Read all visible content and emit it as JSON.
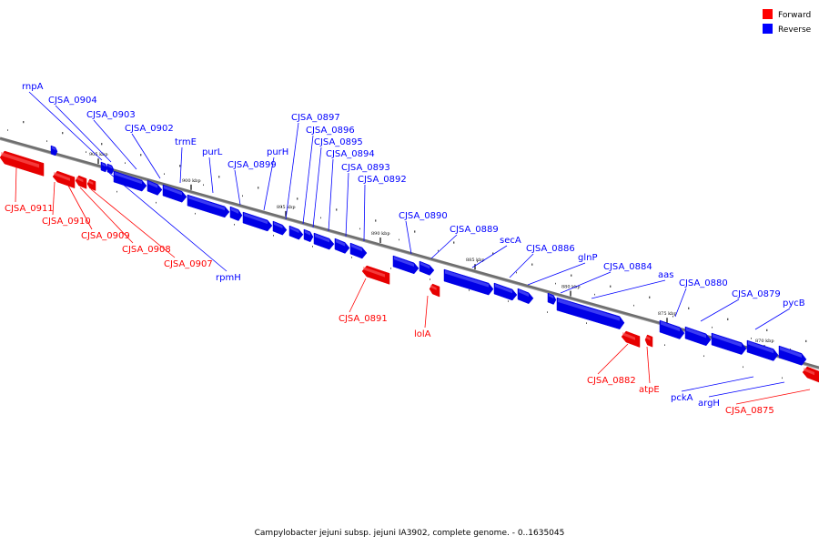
{
  "caption": "Campylobacter jejuni subsp. jejuni IA3902, complete genome. - 0..1635045",
  "legend": [
    {
      "label": "Forward",
      "color": "#ff0000"
    },
    {
      "label": "Reverse",
      "color": "#0000ff"
    }
  ],
  "colors": {
    "forward": "#e60000",
    "reverse": "#0000e6",
    "backbone": "#6e6e6e"
  },
  "ticks": [
    "905 kbp",
    "900 kbp",
    "895 kbp",
    "890 kbp",
    "885 kbp",
    "880 kbp",
    "875 kbp",
    "870 kbp"
  ],
  "genes": [
    {
      "name": "CJSA_0911",
      "strand": "forward"
    },
    {
      "name": "rnpA",
      "strand": "reverse"
    },
    {
      "name": "CJSA_0910",
      "strand": "forward"
    },
    {
      "name": "CJSA_0909",
      "strand": "forward"
    },
    {
      "name": "CJSA_0908",
      "strand": "forward"
    },
    {
      "name": "CJSA_0907",
      "strand": "forward"
    },
    {
      "name": "rpmH",
      "strand": "reverse"
    },
    {
      "name": "CJSA_0904",
      "strand": "reverse"
    },
    {
      "name": "CJSA_0903",
      "strand": "reverse"
    },
    {
      "name": "CJSA_0902",
      "strand": "reverse"
    },
    {
      "name": "trmE",
      "strand": "reverse"
    },
    {
      "name": "purL",
      "strand": "reverse"
    },
    {
      "name": "CJSA_0899",
      "strand": "reverse"
    },
    {
      "name": "purH",
      "strand": "reverse"
    },
    {
      "name": "CJSA_0897",
      "strand": "reverse"
    },
    {
      "name": "CJSA_0896",
      "strand": "reverse"
    },
    {
      "name": "CJSA_0895",
      "strand": "reverse"
    },
    {
      "name": "CJSA_0894",
      "strand": "reverse"
    },
    {
      "name": "CJSA_0893",
      "strand": "reverse"
    },
    {
      "name": "CJSA_0892",
      "strand": "reverse"
    },
    {
      "name": "CJSA_0891",
      "strand": "forward"
    },
    {
      "name": "CJSA_0890",
      "strand": "reverse"
    },
    {
      "name": "lolA",
      "strand": "forward"
    },
    {
      "name": "CJSA_0889",
      "strand": "reverse"
    },
    {
      "name": "secA",
      "strand": "reverse"
    },
    {
      "name": "CJSA_0886",
      "strand": "reverse"
    },
    {
      "name": "glnP",
      "strand": "reverse"
    },
    {
      "name": "CJSA_0884",
      "strand": "reverse"
    },
    {
      "name": "aas",
      "strand": "reverse"
    },
    {
      "name": "CJSA_0882",
      "strand": "forward"
    },
    {
      "name": "atpE",
      "strand": "forward"
    },
    {
      "name": "CJSA_0880",
      "strand": "reverse"
    },
    {
      "name": "CJSA_0879",
      "strand": "reverse"
    },
    {
      "name": "pycB",
      "strand": "reverse"
    },
    {
      "name": "pckA",
      "strand": "reverse"
    },
    {
      "name": "argH",
      "strand": "reverse"
    },
    {
      "name": "CJSA_0875",
      "strand": "forward"
    }
  ]
}
